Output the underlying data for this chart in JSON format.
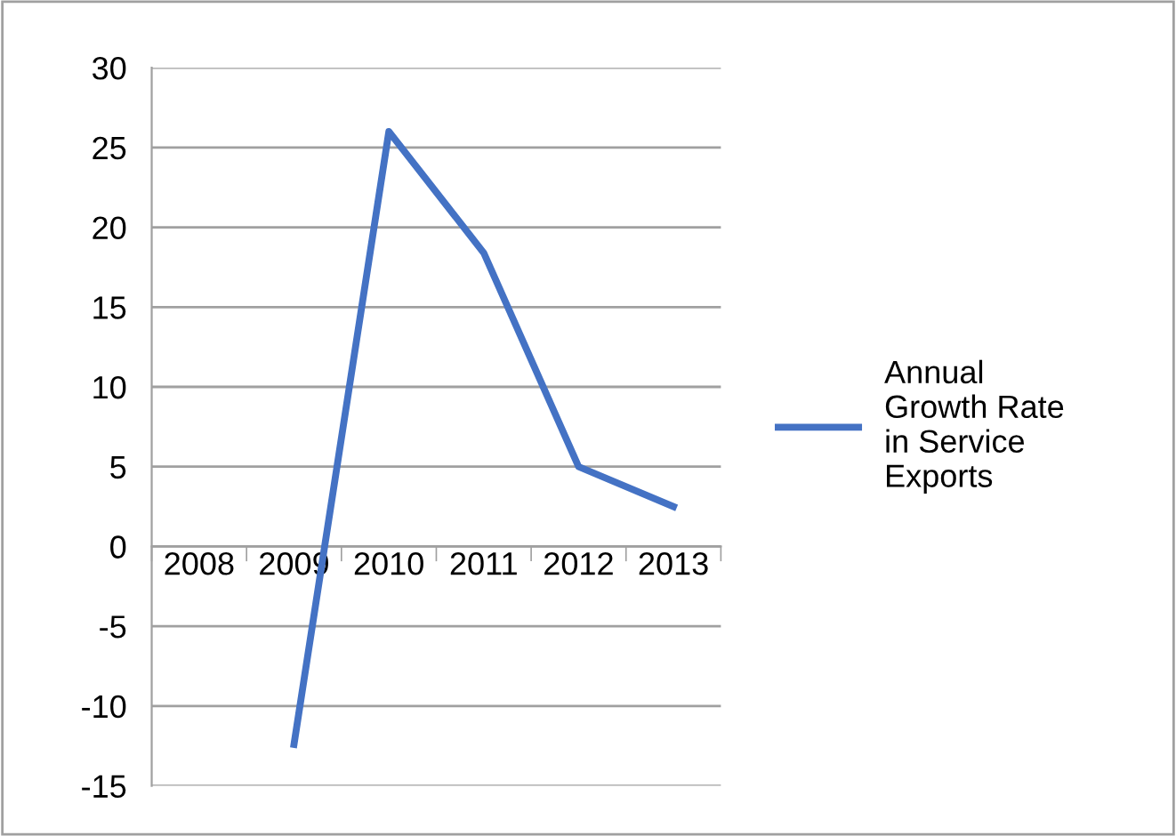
{
  "chart_data": {
    "type": "line",
    "categories": [
      "2008",
      "2009",
      "2010",
      "2011",
      "2012",
      "2013"
    ],
    "series": [
      {
        "name": "Annual Growth Rate in Service Exports",
        "color": "#4472c4",
        "values": [
          null,
          -12.4,
          26,
          18.4,
          5,
          2.5
        ]
      }
    ],
    "ylim": [
      -15,
      30
    ],
    "yticks": [
      -15,
      -10,
      -5,
      0,
      5,
      10,
      15,
      20,
      25,
      30
    ],
    "grid": "y",
    "legend": "right",
    "marker": "none",
    "line_style": "solid"
  }
}
